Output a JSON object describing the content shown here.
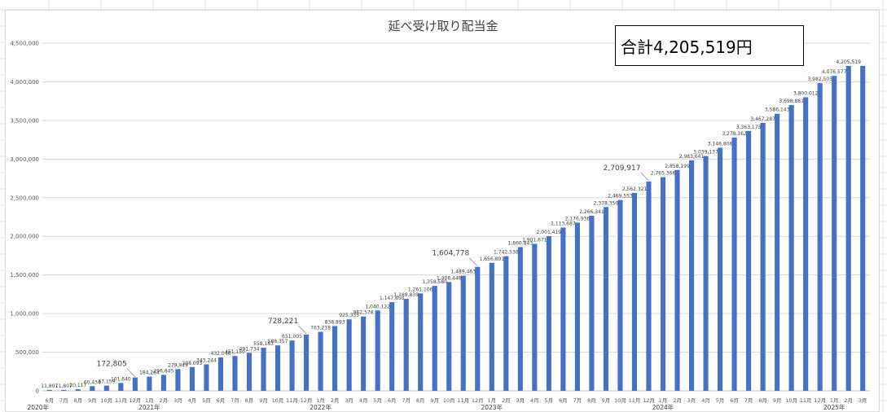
{
  "chart_data": {
    "type": "bar",
    "title": "延べ受け取り配当金",
    "total_label": "合計4,205,519円",
    "bar_color": "#4472C4",
    "grid": true,
    "ylim": [
      0,
      4500000
    ],
    "yticks": [
      "0",
      "500,000",
      "1,000,000",
      "1,500,000",
      "2,000,000",
      "2,500,000",
      "3,000,000",
      "3,500,000",
      "4,000,000",
      "4,500,000"
    ],
    "ytick_values": [
      0,
      500000,
      1000000,
      1500000,
      2000000,
      2500000,
      3000000,
      3500000,
      4000000,
      4500000
    ],
    "categories": [
      "6月",
      "7月",
      "8月",
      "9月",
      "10月",
      "11月",
      "12月",
      "1月",
      "2月",
      "3月",
      "4月",
      "5月",
      "6月",
      "7月",
      "8月",
      "9月",
      "10月",
      "11月",
      "12月",
      "1月",
      "2月",
      "3月",
      "4月",
      "5月",
      "6月",
      "7月",
      "8月",
      "9月",
      "10月",
      "11月",
      "12月",
      "1月",
      "2月",
      "3月",
      "4月",
      "5月",
      "6月",
      "7月",
      "8月",
      "9月",
      "10月",
      "11月",
      "12月",
      "1月",
      "2月",
      "3月",
      "4月",
      "5月",
      "6月",
      "7月",
      "8月",
      "9月",
      "10月",
      "11月",
      "12月",
      "1月",
      "2月",
      "3月"
    ],
    "values": [
      11807,
      11807,
      20117,
      60434,
      67159,
      101640,
      172805,
      184264,
      206845,
      279949,
      308093,
      343244,
      432046,
      451150,
      491734,
      558183,
      588357,
      651005,
      728221,
      763218,
      838893,
      925335,
      962578,
      1040122,
      1147850,
      1189839,
      1261106,
      1358580,
      1408448,
      1489463,
      1604778,
      1656891,
      1742530,
      1860843,
      1901671,
      2001419,
      2113687,
      2176936,
      2266341,
      2378350,
      2469553,
      2562321,
      2709917,
      2765366,
      2858199,
      2983641,
      3039137,
      3146806,
      3278362,
      3363173,
      3467287,
      3586143,
      3698861,
      3800012,
      3982505,
      4076577,
      4205519,
      4205519
    ],
    "data_labels": [
      "11,807",
      "11,807",
      "20,117",
      "60,434",
      "67,159",
      "101,640",
      "172,805",
      "184,264",
      "206,845",
      "279,949",
      "308,093",
      "343,244",
      "432,046",
      "451,150",
      "491,734",
      "558,183",
      "588,357",
      "651,005",
      "728,221",
      "763,218",
      "838,893",
      "925,335",
      "962,578",
      "1,040,122",
      "1,147,850",
      "1,189,839",
      "1,261,106",
      "1,358,580",
      "1,408,448",
      "1,489,463",
      "1,604,778",
      "1,656,891",
      "1,742,530",
      "1,860,843",
      "1,901,671",
      "2,001,419",
      "2,113,687",
      "2,176,936",
      "2,266,341",
      "2,378,350",
      "2,469,553",
      "2,562,321",
      "2,709,917",
      "2,765,366",
      "2,858,199",
      "2,983,641",
      "3,039,137",
      "3,146,806",
      "3,278,362",
      "3,363,173",
      "3,467,287",
      "3,586,143",
      "3,698,861",
      "3,800,012",
      "3,982,505",
      "4,076,577",
      "4,205,519",
      ""
    ],
    "big_label_indices": [
      6,
      18,
      30,
      42
    ],
    "years": [
      {
        "label": "2020年",
        "start_index": 0
      },
      {
        "label": "2021年",
        "start_index": 7
      },
      {
        "label": "2022年",
        "start_index": 19
      },
      {
        "label": "2023年",
        "start_index": 31
      },
      {
        "label": "2024年",
        "start_index": 43
      },
      {
        "label": "2025年",
        "start_index": 55
      }
    ]
  }
}
